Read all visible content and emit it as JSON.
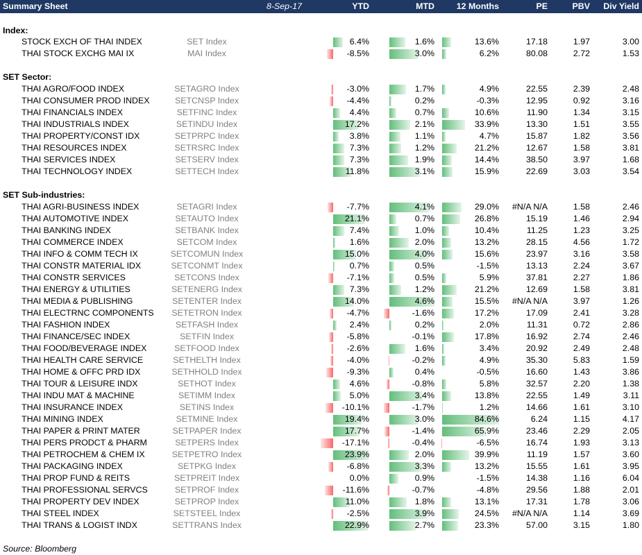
{
  "header": {
    "title": "Summary Sheet",
    "date": "8-Sep-17",
    "ytd": "YTD",
    "mtd": "MTD",
    "m12": "12 Months",
    "pe": "PE",
    "pbv": "PBV",
    "dy": "Div Yield"
  },
  "sections": [
    {
      "title": "Index:",
      "rows": [
        {
          "name": "STOCK EXCH OF THAI INDEX",
          "ticker": "SET Index",
          "ytd": "6.4%",
          "mtd": "1.6%",
          "m12": "13.6%",
          "pe": "17.18",
          "pbv": "1.97",
          "dy": "3.00",
          "ytd_v": 6.4,
          "mtd_v": 1.6,
          "m12_v": 13.6
        },
        {
          "name": "THAI STOCK EXCHG MAI IX",
          "ticker": "MAI Index",
          "ytd": "-8.5%",
          "mtd": "3.0%",
          "m12": "6.2%",
          "pe": "80.08",
          "pbv": "2.72",
          "dy": "1.53",
          "ytd_v": -8.5,
          "mtd_v": 3.0,
          "m12_v": 6.2
        }
      ]
    },
    {
      "title": "SET Sector:",
      "rows": [
        {
          "name": "THAI AGRO/FOOD INDEX",
          "ticker": "SETAGRO Index",
          "ytd": "-3.0%",
          "mtd": "1.7%",
          "m12": "4.9%",
          "pe": "22.55",
          "pbv": "2.39",
          "dy": "2.48",
          "ytd_v": -3.0,
          "mtd_v": 1.7,
          "m12_v": 4.9
        },
        {
          "name": "THAI CONSUMER PROD INDEX",
          "ticker": "SETCNSP Index",
          "ytd": "-4.4%",
          "mtd": "0.2%",
          "m12": "-0.3%",
          "pe": "12.95",
          "pbv": "0.92",
          "dy": "3.16",
          "ytd_v": -4.4,
          "mtd_v": 0.2,
          "m12_v": -0.3
        },
        {
          "name": "THAI FINANCIALS INDEX",
          "ticker": "SETFINC Index",
          "ytd": "4.4%",
          "mtd": "0.7%",
          "m12": "10.6%",
          "pe": "11.90",
          "pbv": "1.34",
          "dy": "3.15",
          "ytd_v": 4.4,
          "mtd_v": 0.7,
          "m12_v": 10.6
        },
        {
          "name": "THAI INDUSTRIALS INDEX",
          "ticker": "SETINDU Index",
          "ytd": "17.2%",
          "mtd": "2.1%",
          "m12": "33.9%",
          "pe": "13.30",
          "pbv": "1.51",
          "dy": "3.55",
          "ytd_v": 17.2,
          "mtd_v": 2.1,
          "m12_v": 33.9
        },
        {
          "name": "THAI PROPERTY/CONST IDX",
          "ticker": "SETPRPC Index",
          "ytd": "3.8%",
          "mtd": "1.1%",
          "m12": "4.7%",
          "pe": "15.87",
          "pbv": "1.82",
          "dy": "3.56",
          "ytd_v": 3.8,
          "mtd_v": 1.1,
          "m12_v": 4.7
        },
        {
          "name": "THAI RESOURCES INDEX",
          "ticker": "SETRSRC Index",
          "ytd": "7.3%",
          "mtd": "1.2%",
          "m12": "21.2%",
          "pe": "12.67",
          "pbv": "1.58",
          "dy": "3.81",
          "ytd_v": 7.3,
          "mtd_v": 1.2,
          "m12_v": 21.2
        },
        {
          "name": "THAI SERVICES INDEX",
          "ticker": "SETSERV Index",
          "ytd": "7.3%",
          "mtd": "1.9%",
          "m12": "14.4%",
          "pe": "38.50",
          "pbv": "3.97",
          "dy": "1.68",
          "ytd_v": 7.3,
          "mtd_v": 1.9,
          "m12_v": 14.4
        },
        {
          "name": "THAI TECHNOLOGY INDEX",
          "ticker": "SETTECH Index",
          "ytd": "11.8%",
          "mtd": "3.1%",
          "m12": "15.9%",
          "pe": "22.69",
          "pbv": "3.03",
          "dy": "3.54",
          "ytd_v": 11.8,
          "mtd_v": 3.1,
          "m12_v": 15.9
        }
      ]
    },
    {
      "title": "SET Sub-industries:",
      "rows": [
        {
          "name": "THAI AGRI-BUSINESS INDEX",
          "ticker": "SETAGRI Index",
          "ytd": "-7.7%",
          "mtd": "4.1%",
          "m12": "29.0%",
          "pe": "#N/A N/A",
          "pbv": "1.58",
          "dy": "2.46",
          "ytd_v": -7.7,
          "mtd_v": 4.1,
          "m12_v": 29.0
        },
        {
          "name": "THAI AUTOMOTIVE INDEX",
          "ticker": "SETAUTO Index",
          "ytd": "21.1%",
          "mtd": "0.7%",
          "m12": "26.8%",
          "pe": "15.19",
          "pbv": "1.46",
          "dy": "2.94",
          "ytd_v": 21.1,
          "mtd_v": 0.7,
          "m12_v": 26.8
        },
        {
          "name": "THAI BANKING INDEX",
          "ticker": "SETBANK Index",
          "ytd": "7.4%",
          "mtd": "1.0%",
          "m12": "10.4%",
          "pe": "11.25",
          "pbv": "1.23",
          "dy": "3.25",
          "ytd_v": 7.4,
          "mtd_v": 1.0,
          "m12_v": 10.4
        },
        {
          "name": "THAI COMMERCE INDEX",
          "ticker": "SETCOM Index",
          "ytd": "1.6%",
          "mtd": "2.0%",
          "m12": "13.2%",
          "pe": "28.15",
          "pbv": "4.56",
          "dy": "1.72",
          "ytd_v": 1.6,
          "mtd_v": 2.0,
          "m12_v": 13.2
        },
        {
          "name": "THAI INFO & COMM TECH IX",
          "ticker": "SETCOMUN Index",
          "ytd": "15.0%",
          "mtd": "4.0%",
          "m12": "15.6%",
          "pe": "23.97",
          "pbv": "3.16",
          "dy": "3.58",
          "ytd_v": 15.0,
          "mtd_v": 4.0,
          "m12_v": 15.6
        },
        {
          "name": "THAI CONSTR MATERIAL IDX",
          "ticker": "SETCONMT Index",
          "ytd": "0.7%",
          "mtd": "0.5%",
          "m12": "-1.5%",
          "pe": "13.13",
          "pbv": "2.24",
          "dy": "3.67",
          "ytd_v": 0.7,
          "mtd_v": 0.5,
          "m12_v": -1.5
        },
        {
          "name": "THAI CONSTR SERVICES",
          "ticker": "SETCONS Index",
          "ytd": "-7.1%",
          "mtd": "0.5%",
          "m12": "5.9%",
          "pe": "37.81",
          "pbv": "2.27",
          "dy": "1.86",
          "ytd_v": -7.1,
          "mtd_v": 0.5,
          "m12_v": 5.9
        },
        {
          "name": "THAI ENERGY & UTILITIES",
          "ticker": "SETENERG Index",
          "ytd": "7.3%",
          "mtd": "1.2%",
          "m12": "21.2%",
          "pe": "12.69",
          "pbv": "1.58",
          "dy": "3.81",
          "ytd_v": 7.3,
          "mtd_v": 1.2,
          "m12_v": 21.2
        },
        {
          "name": "THAI MEDIA & PUBLISHING",
          "ticker": "SETENTER Index",
          "ytd": "14.0%",
          "mtd": "4.6%",
          "m12": "15.5%",
          "pe": "#N/A N/A",
          "pbv": "3.97",
          "dy": "1.26",
          "ytd_v": 14.0,
          "mtd_v": 4.6,
          "m12_v": 15.5
        },
        {
          "name": "THAI ELECTRNC COMPONENTS",
          "ticker": "SETETRON Index",
          "ytd": "-4.7%",
          "mtd": "-1.6%",
          "m12": "17.2%",
          "pe": "17.09",
          "pbv": "2.41",
          "dy": "3.28",
          "ytd_v": -4.7,
          "mtd_v": -1.6,
          "m12_v": 17.2
        },
        {
          "name": "THAI FASHION INDEX",
          "ticker": "SETFASH Index",
          "ytd": "2.4%",
          "mtd": "0.2%",
          "m12": "2.0%",
          "pe": "11.31",
          "pbv": "0.72",
          "dy": "2.86",
          "ytd_v": 2.4,
          "mtd_v": 0.2,
          "m12_v": 2.0
        },
        {
          "name": "THAI FINANCE/SEC INDEX",
          "ticker": "SETFIN Index",
          "ytd": "-5.8%",
          "mtd": "-0.1%",
          "m12": "17.8%",
          "pe": "16.92",
          "pbv": "2.74",
          "dy": "2.46",
          "ytd_v": -5.8,
          "mtd_v": -0.1,
          "m12_v": 17.8
        },
        {
          "name": "THAI FOOD/BEVERAGE INDEX",
          "ticker": "SETFOOD Index",
          "ytd": "-2.6%",
          "mtd": "1.6%",
          "m12": "3.4%",
          "pe": "20.92",
          "pbv": "2.49",
          "dy": "2.48",
          "ytd_v": -2.6,
          "mtd_v": 1.6,
          "m12_v": 3.4
        },
        {
          "name": "THAI HEALTH CARE SERVICE",
          "ticker": "SETHELTH Index",
          "ytd": "-4.0%",
          "mtd": "-0.2%",
          "m12": "4.9%",
          "pe": "35.30",
          "pbv": "5.83",
          "dy": "1.59",
          "ytd_v": -4.0,
          "mtd_v": -0.2,
          "m12_v": 4.9
        },
        {
          "name": "THAI HOME & OFFC PRD IDX",
          "ticker": "SETHHOLD Index",
          "ytd": "-9.3%",
          "mtd": "0.4%",
          "m12": "-0.5%",
          "pe": "16.60",
          "pbv": "1.43",
          "dy": "3.86",
          "ytd_v": -9.3,
          "mtd_v": 0.4,
          "m12_v": -0.5
        },
        {
          "name": "THAI TOUR & LEISURE INDX",
          "ticker": "SETHOT Index",
          "ytd": "4.6%",
          "mtd": "-0.8%",
          "m12": "5.8%",
          "pe": "32.57",
          "pbv": "2.20",
          "dy": "1.38",
          "ytd_v": 4.6,
          "mtd_v": -0.8,
          "m12_v": 5.8
        },
        {
          "name": "THAI INDU MAT & MACHINE",
          "ticker": "SETIMM Index",
          "ytd": "5.0%",
          "mtd": "3.4%",
          "m12": "13.8%",
          "pe": "22.55",
          "pbv": "1.49",
          "dy": "3.11",
          "ytd_v": 5.0,
          "mtd_v": 3.4,
          "m12_v": 13.8
        },
        {
          "name": "THAI INSURANCE INDEX",
          "ticker": "SETINS Index",
          "ytd": "-10.1%",
          "mtd": "-1.7%",
          "m12": "1.2%",
          "pe": "14.66",
          "pbv": "1.61",
          "dy": "3.10",
          "ytd_v": -10.1,
          "mtd_v": -1.7,
          "m12_v": 1.2
        },
        {
          "name": "THAI MINING INDEX",
          "ticker": "SETMINE Index",
          "ytd": "19.4%",
          "mtd": "3.0%",
          "m12": "84.6%",
          "pe": "6.24",
          "pbv": "1.15",
          "dy": "4.17",
          "ytd_v": 19.4,
          "mtd_v": 3.0,
          "m12_v": 84.6
        },
        {
          "name": "THAI PAPER & PRINT MATER",
          "ticker": "SETPAPER Index",
          "ytd": "17.7%",
          "mtd": "-1.4%",
          "m12": "65.9%",
          "pe": "23.46",
          "pbv": "2.29",
          "dy": "2.05",
          "ytd_v": 17.7,
          "mtd_v": -1.4,
          "m12_v": 65.9
        },
        {
          "name": "THAI PERS PRODCT & PHARM",
          "ticker": "SETPERS Index",
          "ytd": "-17.1%",
          "mtd": "-0.4%",
          "m12": "-6.5%",
          "pe": "16.74",
          "pbv": "1.93",
          "dy": "3.13",
          "ytd_v": -17.1,
          "mtd_v": -0.4,
          "m12_v": -6.5
        },
        {
          "name": "THAI PETROCHEM & CHEM IX",
          "ticker": "SETPETRO Index",
          "ytd": "23.9%",
          "mtd": "2.0%",
          "m12": "39.9%",
          "pe": "11.19",
          "pbv": "1.57",
          "dy": "3.60",
          "ytd_v": 23.9,
          "mtd_v": 2.0,
          "m12_v": 39.9
        },
        {
          "name": "THAI PACKAGING INDEX",
          "ticker": "SETPKG Index",
          "ytd": "-6.8%",
          "mtd": "3.3%",
          "m12": "13.2%",
          "pe": "15.55",
          "pbv": "1.61",
          "dy": "3.95",
          "ytd_v": -6.8,
          "mtd_v": 3.3,
          "m12_v": 13.2
        },
        {
          "name": "THAI PROP FUND & REITS",
          "ticker": "SETPREIT Index",
          "ytd": "0.0%",
          "mtd": "0.9%",
          "m12": "-1.5%",
          "pe": "14.38",
          "pbv": "1.16",
          "dy": "6.04",
          "ytd_v": 0.0,
          "mtd_v": 0.9,
          "m12_v": -1.5
        },
        {
          "name": "THAI PROFESSIONAL SERVCS",
          "ticker": "SETPROF Index",
          "ytd": "-11.6%",
          "mtd": "-0.7%",
          "m12": "-4.8%",
          "pe": "29.56",
          "pbv": "1.88",
          "dy": "2.01",
          "ytd_v": -11.6,
          "mtd_v": -0.7,
          "m12_v": -4.8
        },
        {
          "name": "THAI PROPERTY DEV INDEX",
          "ticker": "SETPROP Index",
          "ytd": "11.0%",
          "mtd": "1.8%",
          "m12": "13.1%",
          "pe": "17.31",
          "pbv": "1.78",
          "dy": "3.06",
          "ytd_v": 11.0,
          "mtd_v": 1.8,
          "m12_v": 13.1
        },
        {
          "name": "THAI STEEL INDEX",
          "ticker": "SETSTEEL Index",
          "ytd": "-2.5%",
          "mtd": "3.9%",
          "m12": "24.5%",
          "pe": "#N/A N/A",
          "pbv": "1.14",
          "dy": "3.69",
          "ytd_v": -2.5,
          "mtd_v": 3.9,
          "m12_v": 24.5
        },
        {
          "name": "THAI TRANS & LOGIST INDX",
          "ticker": "SETTRANS Index",
          "ytd": "22.9%",
          "mtd": "2.7%",
          "m12": "23.3%",
          "pe": "57.00",
          "pbv": "3.15",
          "dy": "1.80",
          "ytd_v": 22.9,
          "mtd_v": 2.7,
          "m12_v": 23.3
        }
      ]
    }
  ],
  "source": "Source: Bloomberg",
  "colors": {
    "header_bg": "#1f3864",
    "bar_positive": "#63be7b",
    "bar_negative": "#f8696b"
  }
}
